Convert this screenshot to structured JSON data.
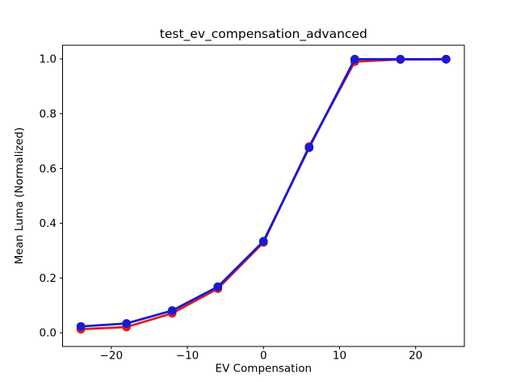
{
  "window": {
    "background": "#ffffff"
  },
  "colors": {
    "frame": "#000000",
    "tick": "#000000",
    "text": "#000000",
    "red_series": "#e01f1f",
    "blue_series": "#1a1ad2"
  },
  "chart_data": {
    "type": "line",
    "title": "test_ev_compensation_advanced",
    "xlabel": "EV Compensation",
    "ylabel": "Mean Luma (Normalized)",
    "x": [
      -24,
      -18,
      -12,
      -6,
      0,
      6,
      12,
      18,
      24
    ],
    "series": [
      {
        "name": "red-line",
        "color": "#e01f1f",
        "marker": "circle",
        "values": [
          0.013,
          0.021,
          0.071,
          0.161,
          0.33,
          0.68,
          0.99,
          0.998,
          0.999
        ]
      },
      {
        "name": "blue-line",
        "color": "#1a1ad2",
        "marker": "circle",
        "values": [
          0.023,
          0.034,
          0.081,
          0.168,
          0.334,
          0.676,
          0.999,
          0.999,
          0.999
        ]
      }
    ],
    "xlim": [
      -26.4,
      26.4
    ],
    "ylim": [
      -0.05,
      1.05
    ],
    "xticks": {
      "values": [
        -20,
        -10,
        0,
        10,
        20
      ],
      "labels": [
        "−20",
        "−10",
        "0",
        "10",
        "20"
      ]
    },
    "yticks": {
      "values": [
        0.0,
        0.2,
        0.4,
        0.6,
        0.8,
        1.0
      ],
      "labels": [
        "0.0",
        "0.2",
        "0.4",
        "0.6",
        "0.8",
        "1.0"
      ]
    },
    "grid": false,
    "legend": "none"
  }
}
